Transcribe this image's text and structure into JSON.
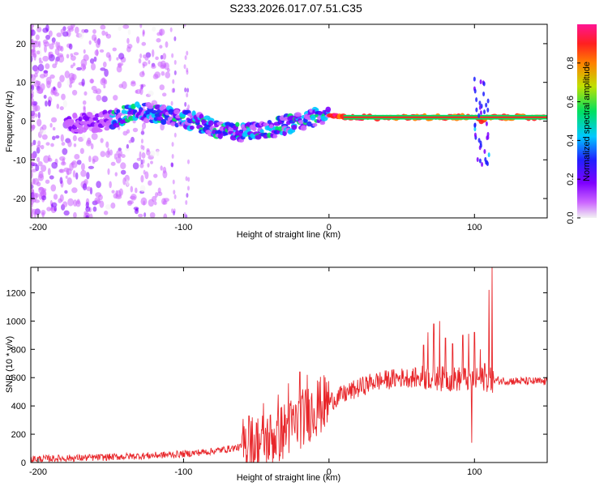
{
  "title": "S233.2026.017.07.51.C35",
  "colors": {
    "snr_line": "#e8262a",
    "axis": "#000000",
    "spectral_ramp": [
      "#f2f2f2",
      "#cc66ff",
      "#7f00ff",
      "#2020ff",
      "#00c8ff",
      "#00e060",
      "#c0e000",
      "#ff8000",
      "#ff2020",
      "#ff1493"
    ]
  },
  "chart_data": [
    {
      "type": "heatmap",
      "name": "spectrogram",
      "xlabel": "Height of straight line (km)",
      "ylabel": "Frequency (Hz)",
      "xlim": [
        -205,
        150
      ],
      "ylim": [
        -25,
        25
      ],
      "xticks": [
        -200,
        -100,
        0,
        100
      ],
      "xtick_labels": [
        "-200",
        "-100",
        "0",
        "100"
      ],
      "yticks": [
        -20,
        -10,
        0,
        10,
        20
      ],
      "ytick_labels": [
        "-20",
        "-10",
        "0",
        "10",
        "20"
      ],
      "ridge": {
        "x": [
          -175,
          -160,
          -150,
          -140,
          -130,
          -120,
          -110,
          -100,
          -90,
          -80,
          -70,
          -60,
          -50,
          -40,
          -30,
          -20,
          -10,
          0,
          5,
          10,
          30,
          60,
          80,
          100,
          105,
          110,
          150
        ],
        "freq": [
          -0.5,
          -0.5,
          0.5,
          1.5,
          2.5,
          2.0,
          1.5,
          0.5,
          -0.5,
          -1.5,
          -2.5,
          -3.0,
          -2.5,
          -2.0,
          -1.0,
          0.0,
          1.0,
          1.5,
          1.2,
          1.0,
          1.0,
          1.0,
          1.0,
          1.0,
          0.0,
          1.0,
          1.0
        ]
      },
      "colorbar": {
        "label": "Normalized spectral amplitude",
        "range": [
          0.0,
          1.0
        ],
        "ticks": [
          0.0,
          0.2,
          0.4,
          0.6,
          0.8
        ],
        "tick_labels": [
          "0.0",
          "0.2",
          "0.4",
          "0.6",
          "0.8"
        ]
      }
    },
    {
      "type": "line",
      "name": "snr",
      "xlabel": "Height of straight line (km)",
      "ylabel": "SNR (10 * v/v)",
      "xlim": [
        -205,
        150
      ],
      "ylim": [
        0,
        1380
      ],
      "xticks": [
        -200,
        -100,
        0,
        100
      ],
      "xtick_labels": [
        "-200",
        "-100",
        "0",
        "100"
      ],
      "yticks": [
        0,
        200,
        400,
        600,
        800,
        1000,
        1200
      ],
      "ytick_labels": [
        "0",
        "200",
        "400",
        "600",
        "800",
        "1000",
        "1200"
      ],
      "trend": {
        "x": [
          -205,
          -160,
          -120,
          -100,
          -80,
          -60,
          -40,
          -25,
          -10,
          10,
          30,
          50,
          65,
          70,
          80,
          90,
          100,
          108,
          112,
          150
        ],
        "y": [
          25,
          35,
          50,
          60,
          80,
          110,
          170,
          260,
          380,
          480,
          570,
          600,
          600,
          600,
          590,
          590,
          590,
          590,
          580,
          570
        ]
      },
      "spikes": {
        "x": [
          -55,
          -45,
          -35,
          -28,
          -20,
          -15,
          -8,
          65,
          68,
          72,
          76,
          80,
          85,
          92,
          96,
          98,
          100,
          104,
          107,
          110,
          112
        ],
        "y": [
          330,
          420,
          480,
          560,
          640,
          620,
          580,
          830,
          920,
          980,
          1000,
          880,
          840,
          900,
          910,
          140,
          920,
          800,
          700,
          1220,
          1380
        ]
      }
    }
  ]
}
